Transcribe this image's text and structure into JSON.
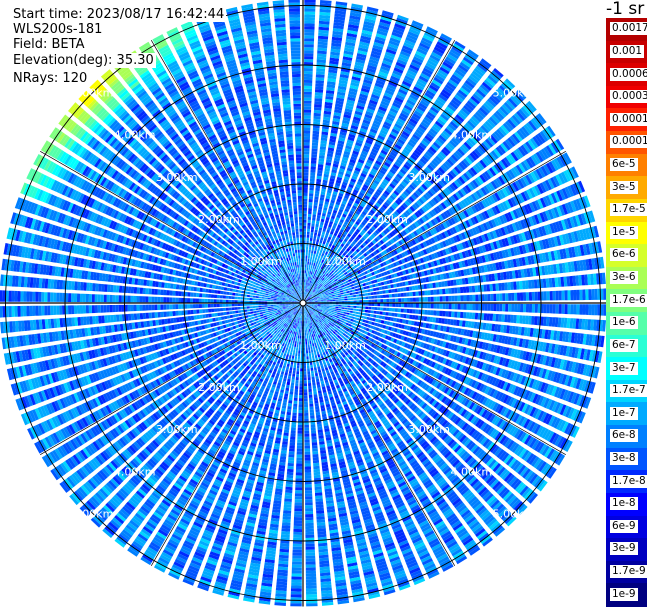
{
  "header": {
    "start_time": "Start time: 2023/08/17 16:42:44",
    "instrument": "WLS200s-181",
    "field": "Field: BETA",
    "elevation": "Elevation(deg): 35.30",
    "nrays": "NRays: 120"
  },
  "colorbar": {
    "title": "-1 sr",
    "labels": [
      "0.0017",
      "0.001",
      "0.0006",
      "0.0003",
      "0.00017",
      "0.0001",
      "6e-5",
      "3e-5",
      "1.7e-5",
      "1e-5",
      "6e-6",
      "3e-6",
      "1.7e-6",
      "1e-6",
      "6e-7",
      "3e-7",
      "1.7e-7",
      "1e-7",
      "6e-8",
      "3e-8",
      "1.7e-8",
      "1e-8",
      "6e-9",
      "3e-9",
      "1.7e-9",
      "1e-9"
    ],
    "colors": [
      "#b40000",
      "#c80000",
      "#dc0000",
      "#f00000",
      "#ff2000",
      "#ff5500",
      "#ff8000",
      "#ffaa00",
      "#ffd500",
      "#ffff00",
      "#d5ff2a",
      "#aaff55",
      "#80ff80",
      "#55ffaa",
      "#2affd5",
      "#00ffff",
      "#00d5ff",
      "#00aaff",
      "#0080ff",
      "#0055ff",
      "#002aff",
      "#0000ff",
      "#0000e0",
      "#0000c0",
      "#0000a0",
      "#000080"
    ]
  },
  "chart_data": {
    "type": "ppi",
    "nrays": 120,
    "field": "BETA",
    "range_rings_km": [
      1,
      2,
      3,
      4,
      5
    ],
    "ring_labels": [
      "1.00km",
      "2.00km",
      "3.00km",
      "4.00km",
      "5.00km"
    ],
    "max_range_km": 5.1,
    "gate_length_km": 0.05,
    "color_scale": "log",
    "value_range": [
      1e-09,
      0.0017
    ],
    "typical_value_near": 3e-08,
    "typical_value_far": 6e-08,
    "high_value_sector_deg": [
      292,
      338
    ],
    "high_value_at_edge": 1e-05
  }
}
